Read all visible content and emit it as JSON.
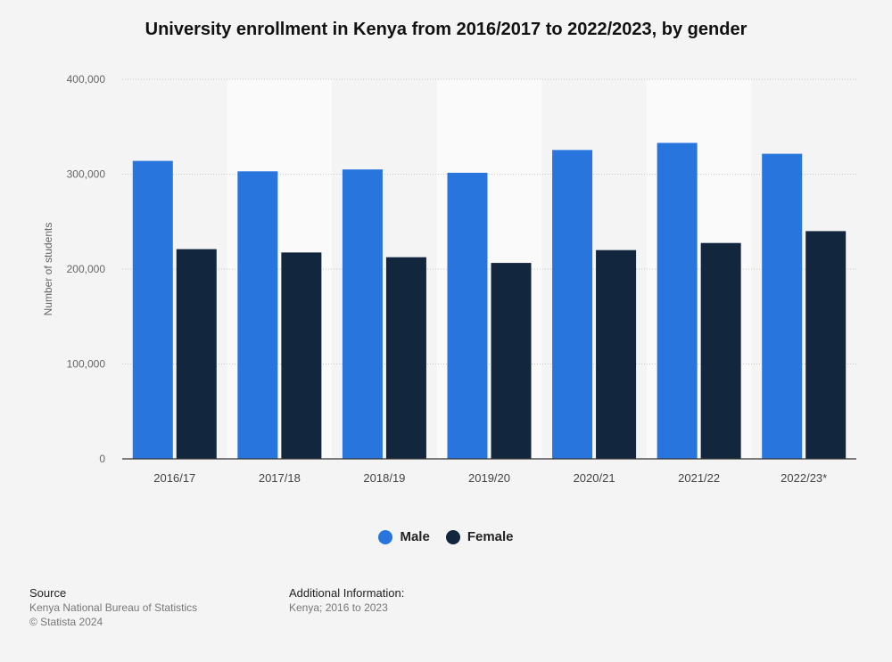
{
  "chart_data": {
    "type": "bar",
    "title": "University enrollment in Kenya from 2016/2017 to 2022/2023, by gender",
    "ylabel": "Number of students",
    "xlabel": "",
    "categories": [
      "2016/17",
      "2017/18",
      "2018/19",
      "2019/20",
      "2020/21",
      "2021/22",
      "2022/23*"
    ],
    "series": [
      {
        "name": "Male",
        "color": "#2876dd",
        "values": [
          314000,
          303000,
          305000,
          301500,
          325500,
          333000,
          321500
        ]
      },
      {
        "name": "Female",
        "color": "#12263e",
        "values": [
          221000,
          217500,
          212500,
          206500,
          220000,
          227500,
          240000
        ]
      }
    ],
    "ylim": [
      0,
      400000
    ],
    "yticks": [
      0,
      100000,
      200000,
      300000,
      400000
    ],
    "ytick_labels": [
      "0",
      "100,000",
      "200,000",
      "300,000",
      "400,000"
    ],
    "grid": true,
    "legend_position": "bottom"
  },
  "footer": {
    "source_heading": "Source",
    "source_lines": [
      "Kenya National Bureau of Statistics",
      "© Statista 2024"
    ],
    "info_heading": "Additional Information:",
    "info_lines": [
      "Kenya; 2016 to 2023"
    ]
  }
}
